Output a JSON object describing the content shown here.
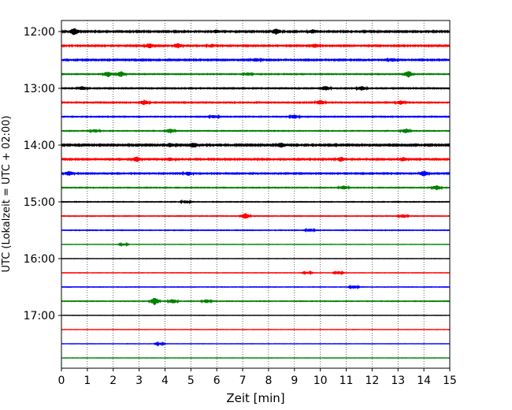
{
  "chart_data": {
    "type": "line",
    "xlabel": "Zeit  [min]",
    "ylabel": "UTC (Lokalzeit = UTC + 02:00)",
    "xlim": [
      0,
      15
    ],
    "x_ticks": [
      "0",
      "1",
      "2",
      "3",
      "4",
      "5",
      "6",
      "7",
      "8",
      "9",
      "10",
      "11",
      "12",
      "13",
      "14",
      "15"
    ],
    "y_ticks": [
      "12:00",
      "13:00",
      "14:00",
      "15:00",
      "16:00",
      "17:00"
    ],
    "grid": "vertical dotted",
    "trace_interval_minutes": 15,
    "trace_colors": [
      "#000000",
      "#ff0000",
      "#0000ff",
      "#008000"
    ],
    "traces": [
      {
        "start": "12:00",
        "color": "#000000",
        "noise": 0.55,
        "events": [
          [
            0.5,
            4.5
          ],
          [
            8.3,
            3.5
          ],
          [
            9.7,
            2.5
          ],
          [
            6.0,
            2.0
          ]
        ]
      },
      {
        "start": "12:15",
        "color": "#ff0000",
        "noise": 0.5,
        "events": [
          [
            3.4,
            3.0
          ],
          [
            4.5,
            3.0
          ],
          [
            9.8,
            2.5
          ],
          [
            5.8,
            2.0
          ]
        ]
      },
      {
        "start": "12:30",
        "color": "#0000ff",
        "noise": 0.5,
        "events": [
          [
            7.5,
            2.0
          ],
          [
            12.8,
            2.0
          ]
        ]
      },
      {
        "start": "12:45",
        "color": "#008000",
        "noise": 0.35,
        "events": [
          [
            1.8,
            3.5
          ],
          [
            2.3,
            3.5
          ],
          [
            13.4,
            4.5
          ],
          [
            7.2,
            2.0
          ]
        ]
      },
      {
        "start": "13:00",
        "color": "#000000",
        "noise": 0.4,
        "events": [
          [
            0.8,
            2.5
          ],
          [
            10.2,
            3.0
          ],
          [
            11.6,
            2.5
          ]
        ]
      },
      {
        "start": "13:15",
        "color": "#ff0000",
        "noise": 0.4,
        "events": [
          [
            3.2,
            3.0
          ],
          [
            10.0,
            3.0
          ],
          [
            13.1,
            2.5
          ]
        ]
      },
      {
        "start": "13:30",
        "color": "#0000ff",
        "noise": 0.35,
        "events": [
          [
            9.0,
            2.5
          ],
          [
            5.9,
            2.0
          ]
        ]
      },
      {
        "start": "13:45",
        "color": "#008000",
        "noise": 0.3,
        "events": [
          [
            4.2,
            3.0
          ],
          [
            13.3,
            3.0
          ],
          [
            1.3,
            2.0
          ]
        ]
      },
      {
        "start": "14:00",
        "color": "#000000",
        "noise": 0.6,
        "events": [
          [
            5.1,
            3.5
          ],
          [
            8.5,
            3.0
          ],
          [
            4.2,
            2.5
          ]
        ]
      },
      {
        "start": "14:15",
        "color": "#ff0000",
        "noise": 0.5,
        "events": [
          [
            2.9,
            3.5
          ],
          [
            10.8,
            3.0
          ],
          [
            4.2,
            2.0
          ],
          [
            13.2,
            2.5
          ]
        ]
      },
      {
        "start": "14:30",
        "color": "#0000ff",
        "noise": 0.45,
        "events": [
          [
            0.3,
            3.0
          ],
          [
            14.0,
            3.5
          ],
          [
            4.9,
            2.5
          ]
        ]
      },
      {
        "start": "14:45",
        "color": "#008000",
        "noise": 0.3,
        "events": [
          [
            10.9,
            2.5
          ],
          [
            14.5,
            3.0
          ]
        ]
      },
      {
        "start": "15:00",
        "color": "#000000",
        "noise": 0.25,
        "events": [
          [
            4.8,
            2.0
          ]
        ]
      },
      {
        "start": "15:15",
        "color": "#ff0000",
        "noise": 0.25,
        "events": [
          [
            7.1,
            4.0
          ],
          [
            13.2,
            2.5
          ]
        ]
      },
      {
        "start": "15:30",
        "color": "#0000ff",
        "noise": 0.25,
        "events": [
          [
            9.6,
            2.0
          ]
        ]
      },
      {
        "start": "15:45",
        "color": "#008000",
        "noise": 0.12,
        "events": [
          [
            2.4,
            1.5
          ]
        ]
      },
      {
        "start": "16:00",
        "color": "#000000",
        "noise": 0.12,
        "events": []
      },
      {
        "start": "16:15",
        "color": "#ff0000",
        "noise": 0.15,
        "events": [
          [
            10.7,
            2.0
          ],
          [
            9.5,
            1.5
          ]
        ]
      },
      {
        "start": "16:30",
        "color": "#0000ff",
        "noise": 0.18,
        "events": [
          [
            11.3,
            2.0
          ]
        ]
      },
      {
        "start": "16:45",
        "color": "#008000",
        "noise": 0.25,
        "events": [
          [
            3.6,
            5.0
          ],
          [
            4.3,
            3.0
          ],
          [
            5.6,
            2.5
          ]
        ]
      },
      {
        "start": "17:00",
        "color": "#000000",
        "noise": 0.12,
        "events": []
      },
      {
        "start": "17:15",
        "color": "#ff0000",
        "noise": 0.12,
        "events": []
      },
      {
        "start": "17:30",
        "color": "#0000ff",
        "noise": 0.12,
        "events": [
          [
            3.8,
            1.5
          ]
        ]
      },
      {
        "start": "17:45",
        "color": "#008000",
        "noise": 0.12,
        "events": []
      }
    ]
  }
}
